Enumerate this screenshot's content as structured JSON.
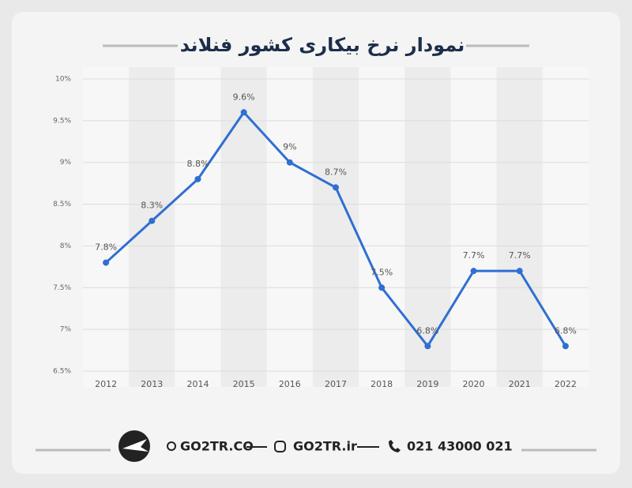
{
  "chart_data": {
    "type": "line",
    "title": "نمودار نرخ بیکاری کشور فنلاند",
    "categories": [
      "2012",
      "2013",
      "2014",
      "2015",
      "2016",
      "2017",
      "2018",
      "2019",
      "2020",
      "2021",
      "2022"
    ],
    "values": [
      7.8,
      8.3,
      8.8,
      9.6,
      9,
      8.7,
      7.5,
      6.8,
      7.7,
      7.7,
      6.8
    ],
    "value_labels": [
      "7.8%",
      "8.3%",
      "8.8%",
      "9.6%",
      "9%",
      "8.7%",
      "7.5%",
      "6.8%",
      "7.7%",
      "7.7%",
      "6.8%"
    ],
    "color": "#2f6fd1",
    "ylim": [
      6.5,
      10
    ],
    "yticks": [
      {
        "value": 6.5,
        "label": "6.5%"
      },
      {
        "value": 7,
        "label": "7%"
      },
      {
        "value": 7.5,
        "label": "7.5%"
      },
      {
        "value": 8,
        "label": "8%"
      },
      {
        "value": 8.5,
        "label": "8.5%"
      },
      {
        "value": 9,
        "label": "9%"
      },
      {
        "value": 9.5,
        "label": "9.5%"
      },
      {
        "value": 10,
        "label": "10%"
      }
    ],
    "grid": true
  },
  "footer": {
    "website": "GO2TR.CO",
    "instagram": "GO2TR.ir",
    "phone": "021 43000 021"
  }
}
